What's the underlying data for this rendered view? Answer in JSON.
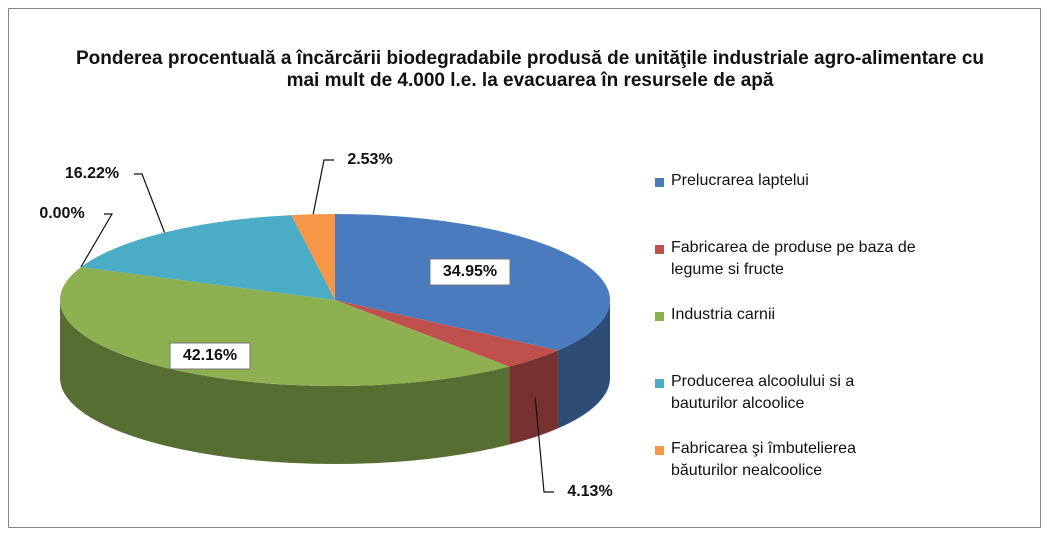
{
  "chart_data": {
    "type": "pie",
    "title": "Ponderea procentuală a încărcării biodegradabile produsă  de unităţile industriale agro-alimentare cu mai mult de 4.000 l.e. la evacuarea în resursele de apă",
    "categories": [
      "Prelucrarea laptelui",
      "Fabricarea de produse pe baza de legume si fructe",
      "Industria carnii",
      null,
      "Producerea alcoolului si a bauturilor alcoolice",
      "Fabricarea şi îmbutelierea băuturilor nealcoolice"
    ],
    "values": [
      34.95,
      4.13,
      42.16,
      0.0,
      16.22,
      2.53
    ],
    "value_labels": [
      "34.95%",
      "4.13%",
      "42.16%",
      "0.00%",
      "16.22%",
      "2.53%"
    ],
    "colors": [
      "#4a7bbf",
      "#c0504d",
      "#8db150",
      "#7f63a2",
      "#4bacc6",
      "#f79646"
    ],
    "legend": "right"
  }
}
